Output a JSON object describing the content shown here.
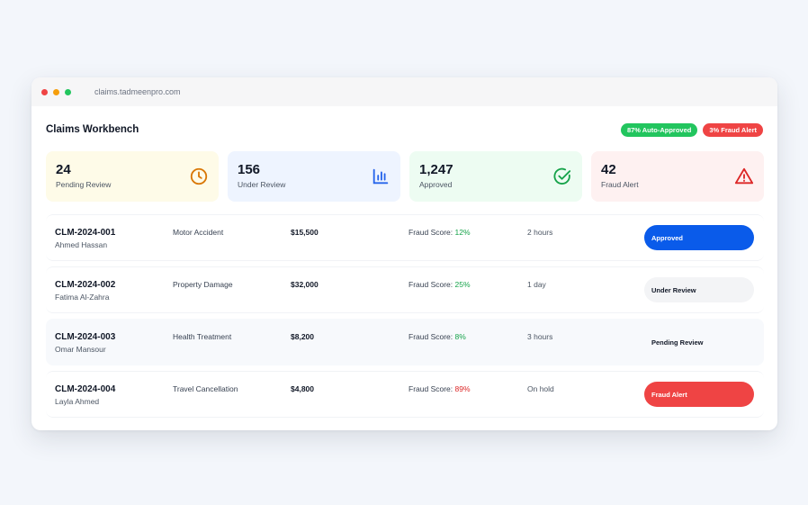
{
  "browser": {
    "url": "claims.tadmeenpro.com"
  },
  "header": {
    "title": "Claims Workbench",
    "badges": [
      {
        "label": "87% Auto-Approved",
        "color": "#22c55e"
      },
      {
        "label": "3% Fraud Alert",
        "color": "#ef4444"
      }
    ]
  },
  "stats": [
    {
      "value": "24",
      "label": "Pending Review",
      "icon": "clock-icon",
      "bg": "#fefbe8",
      "color": "#d97706"
    },
    {
      "value": "156",
      "label": "Under Review",
      "icon": "bar-chart-icon",
      "bg": "#eef4ff",
      "color": "#2563eb"
    },
    {
      "value": "1,247",
      "label": "Approved",
      "icon": "check-circle-icon",
      "bg": "#edfcf2",
      "color": "#16a34a"
    },
    {
      "value": "42",
      "label": "Fraud Alert",
      "icon": "warning-icon",
      "bg": "#fef1f1",
      "color": "#dc2626"
    }
  ],
  "fraud_label": "Fraud Score:",
  "claims": [
    {
      "id": "CLM-2024-001",
      "name": "Ahmed Hassan",
      "type": "Motor Accident",
      "amount": "$15,500",
      "fraud_score": "12%",
      "fraud_color": "#16a34a",
      "time": "2 hours",
      "status": "Approved",
      "status_bg": "#0a5bea",
      "status_fg": "#ffffff"
    },
    {
      "id": "CLM-2024-002",
      "name": "Fatima Al-Zahra",
      "type": "Property Damage",
      "amount": "$32,000",
      "fraud_score": "25%",
      "fraud_color": "#16a34a",
      "time": "1 day",
      "status": "Under Review",
      "status_bg": "#f3f4f6",
      "status_fg": "#111827"
    },
    {
      "id": "CLM-2024-003",
      "name": "Omar Mansour",
      "type": "Health Treatment",
      "amount": "$8,200",
      "fraud_score": "8%",
      "fraud_color": "#16a34a",
      "time": "3 hours",
      "status": "Pending Review",
      "status_bg": "#f7f9fc",
      "status_fg": "#111827"
    },
    {
      "id": "CLM-2024-004",
      "name": "Layla Ahmed",
      "type": "Travel Cancellation",
      "amount": "$4,800",
      "fraud_score": "89%",
      "fraud_color": "#dc2626",
      "time": "On hold",
      "status": "Fraud Alert",
      "status_bg": "#ef4444",
      "status_fg": "#ffffff"
    }
  ]
}
